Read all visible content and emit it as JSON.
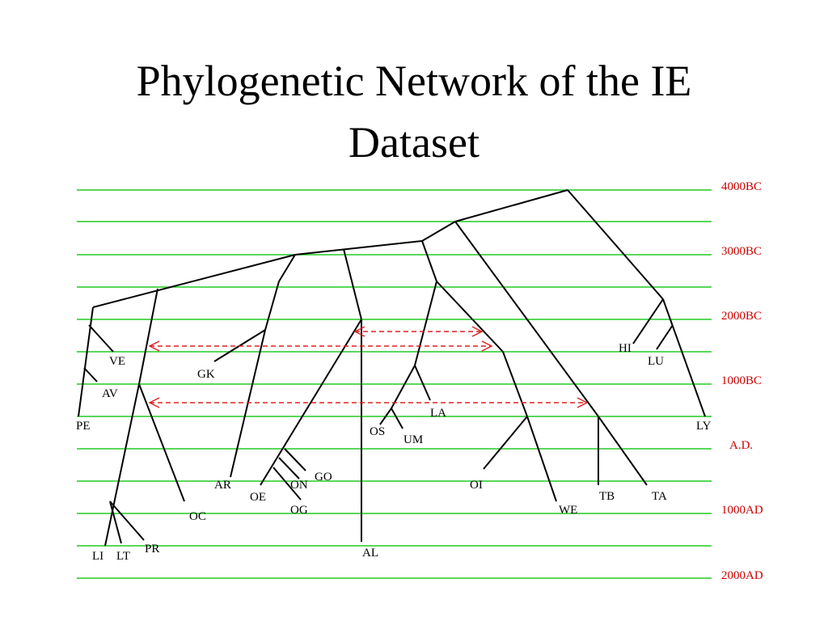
{
  "header": {
    "title": "Phylogenetic Network of the IE Dataset"
  },
  "time_labels": [
    "4000BC",
    "3000BC",
    "2000BC",
    "1000BC",
    "A.D.",
    "1000AD",
    "2000AD"
  ],
  "nodes": [
    {
      "label": "VE"
    },
    {
      "label": "GK"
    },
    {
      "label": "AV"
    },
    {
      "label": "PE"
    },
    {
      "label": "AR"
    },
    {
      "label": "OE"
    },
    {
      "label": "ON"
    },
    {
      "label": "GO"
    },
    {
      "label": "OG"
    },
    {
      "label": "OC"
    },
    {
      "label": "LI"
    },
    {
      "label": "LT"
    },
    {
      "label": "PR"
    },
    {
      "label": "AL"
    },
    {
      "label": "OS"
    },
    {
      "label": "UM"
    },
    {
      "label": "LA"
    },
    {
      "label": "OI"
    },
    {
      "label": "WE"
    },
    {
      "label": "TB"
    },
    {
      "label": "TA"
    },
    {
      "label": "HI"
    },
    {
      "label": "LU"
    },
    {
      "label": "LY"
    }
  ]
}
